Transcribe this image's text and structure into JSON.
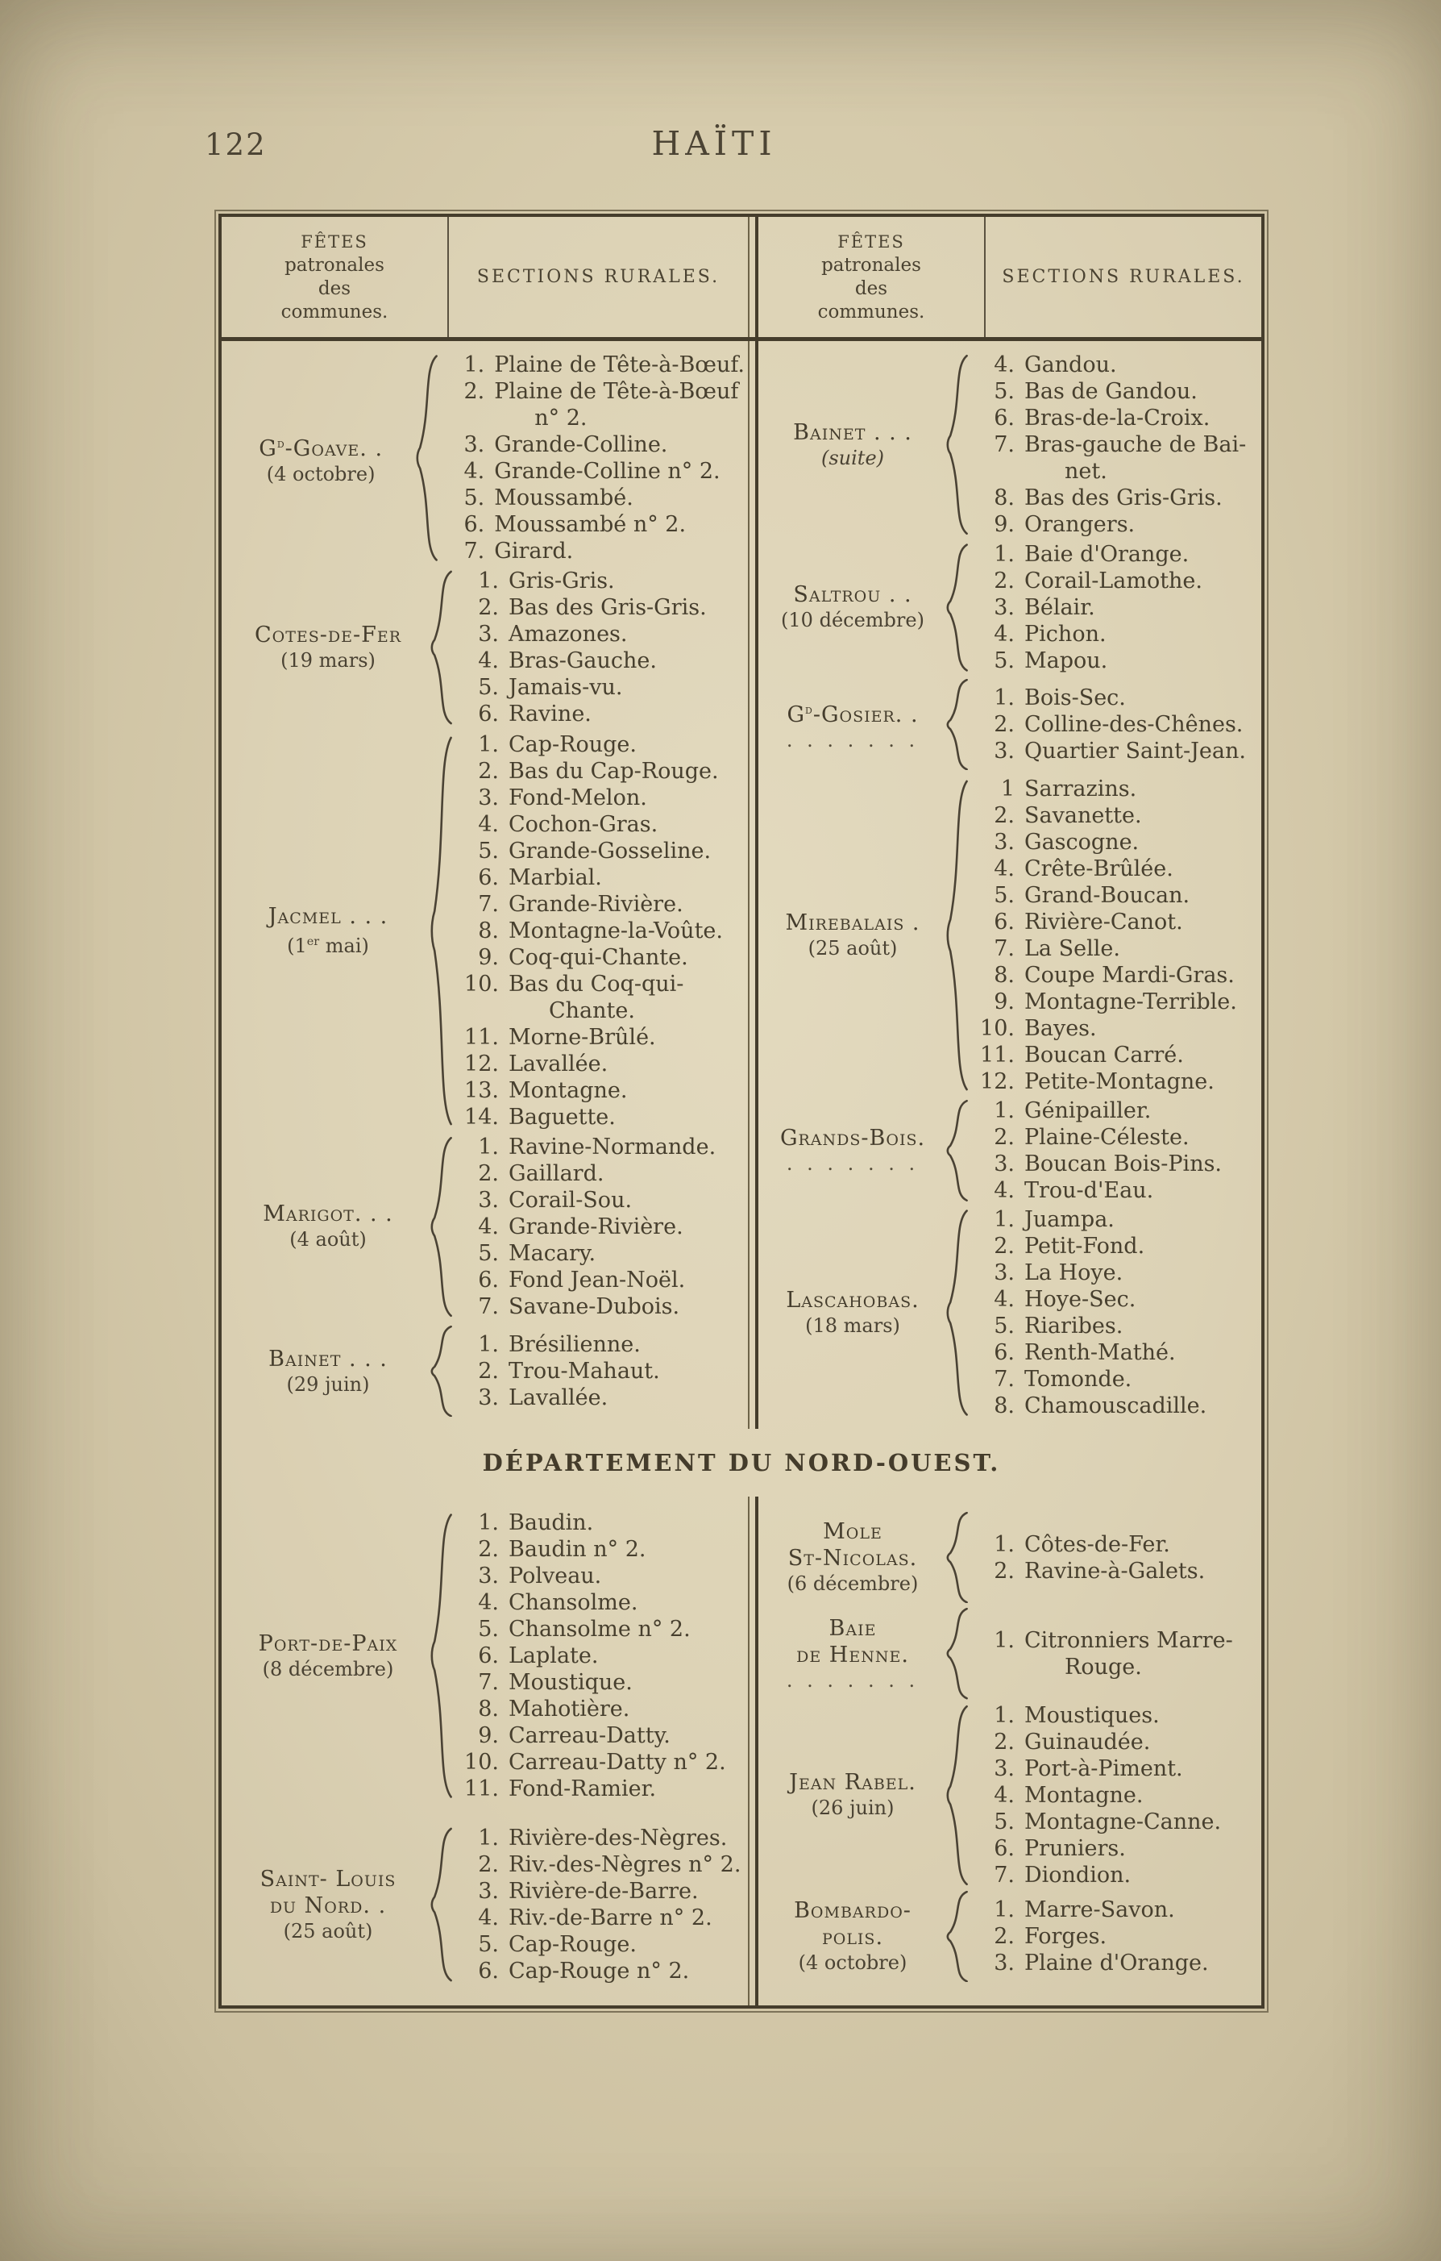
{
  "page": {
    "folio": "122",
    "running_title": "HAÏTI"
  },
  "headers": {
    "fetes_lines": [
      "FÊTES",
      "patronales",
      "des",
      "communes."
    ],
    "sections": "SECTIONS RURALES."
  },
  "divider_title": "DÉPARTEMENT DU NORD-OUEST.",
  "top_left_groups": [
    {
      "name": [
        {
          "segs": [
            {
              "t": "G"
            },
            {
              "t": "d",
              "sup": true
            },
            {
              "t": "-Goave. ."
            }
          ]
        },
        {
          "segs": [
            {
              "t": "(4 octobre)"
            }
          ]
        }
      ],
      "items": [
        {
          "n": "1.",
          "t": "Plaine de Tête-à-Bœuf."
        },
        {
          "n": "2.",
          "t": "Plaine de Tête-à-Bœuf",
          "t2": "n° 2."
        },
        {
          "n": "3.",
          "t": "Grande-Colline."
        },
        {
          "n": "4.",
          "t": "Grande-Colline n° 2."
        },
        {
          "n": "5.",
          "t": "Moussambé."
        },
        {
          "n": "6.",
          "t": "Moussambé n° 2."
        },
        {
          "n": "7.",
          "t": "Girard."
        }
      ]
    },
    {
      "name": [
        {
          "segs": [
            {
              "t": "Cotes-de-Fer"
            }
          ]
        },
        {
          "segs": [
            {
              "t": "(19 mars)"
            }
          ]
        }
      ],
      "items": [
        {
          "n": "1.",
          "t": "Gris-Gris."
        },
        {
          "n": "2.",
          "t": "Bas des Gris-Gris."
        },
        {
          "n": "3.",
          "t": "Amazones."
        },
        {
          "n": "4.",
          "t": "Bras-Gauche."
        },
        {
          "n": "5.",
          "t": "Jamais-vu."
        },
        {
          "n": "6.",
          "t": "Ravine."
        }
      ]
    },
    {
      "name": [
        {
          "segs": [
            {
              "t": "Jacmel . . ."
            }
          ]
        },
        {
          "segs": [
            {
              "t": "(1"
            },
            {
              "t": "er",
              "sup": true
            },
            {
              "t": " mai)"
            }
          ]
        }
      ],
      "items": [
        {
          "n": "1.",
          "t": "Cap-Rouge."
        },
        {
          "n": "2.",
          "t": "Bas du Cap-Rouge."
        },
        {
          "n": "3.",
          "t": "Fond-Melon."
        },
        {
          "n": "4.",
          "t": "Cochon-Gras."
        },
        {
          "n": "5.",
          "t": "Grande-Gosseline."
        },
        {
          "n": "6.",
          "t": "Marbial."
        },
        {
          "n": "7.",
          "t": "Grande-Rivière."
        },
        {
          "n": "8.",
          "t": "Montagne-la-Voûte."
        },
        {
          "n": "9.",
          "t": "Coq-qui-Chante."
        },
        {
          "n": "10.",
          "t": "Bas du Coq-qui-",
          "t2": "Chante."
        },
        {
          "n": "11.",
          "t": "Morne-Brûlé."
        },
        {
          "n": "12.",
          "t": "Lavallée."
        },
        {
          "n": "13.",
          "t": "Montagne."
        },
        {
          "n": "14.",
          "t": "Baguette."
        }
      ]
    },
    {
      "name": [
        {
          "segs": [
            {
              "t": "Marigot. . ."
            }
          ]
        },
        {
          "segs": [
            {
              "t": "(4 août)"
            }
          ]
        }
      ],
      "items": [
        {
          "n": "1.",
          "t": "Ravine-Normande."
        },
        {
          "n": "2.",
          "t": "Gaillard."
        },
        {
          "n": "3.",
          "t": "Corail-Sou."
        },
        {
          "n": "4.",
          "t": "Grande-Rivière."
        },
        {
          "n": "5.",
          "t": "Macary."
        },
        {
          "n": "6.",
          "t": "Fond Jean-Noël."
        },
        {
          "n": "7.",
          "t": "Savane-Dubois."
        }
      ]
    },
    {
      "name": [
        {
          "segs": [
            {
              "t": "Bainet . . ."
            }
          ]
        },
        {
          "segs": [
            {
              "t": "(29 juin)"
            }
          ]
        }
      ],
      "items": [
        {
          "n": "1.",
          "t": "Brésilienne."
        },
        {
          "n": "2.",
          "t": "Trou-Mahaut."
        },
        {
          "n": "3.",
          "t": "Lavallée."
        }
      ]
    }
  ],
  "top_right_groups": [
    {
      "name": [
        {
          "segs": [
            {
              "t": "Bainet . . ."
            }
          ]
        },
        {
          "segs": [
            {
              "t": "(suite)"
            }
          ],
          "italic": true
        }
      ],
      "items": [
        {
          "n": "4.",
          "t": "Gandou."
        },
        {
          "n": "5.",
          "t": "Bas de Gandou."
        },
        {
          "n": "6.",
          "t": "Bras-de-la-Croix."
        },
        {
          "n": "7.",
          "t": "Bras-gauche de Bai-",
          "t2": "net."
        },
        {
          "n": "8.",
          "t": "Bas des Gris-Gris."
        },
        {
          "n": "9.",
          "t": "Orangers."
        }
      ]
    },
    {
      "name": [
        {
          "segs": [
            {
              "t": "Saltrou . ."
            }
          ]
        },
        {
          "segs": [
            {
              "t": "(10 décembre)"
            }
          ]
        }
      ],
      "items": [
        {
          "n": "1.",
          "t": "Baie d'Orange."
        },
        {
          "n": "2.",
          "t": "Corail-Lamothe."
        },
        {
          "n": "3.",
          "t": "Bélair."
        },
        {
          "n": "4.",
          "t": "Pichon."
        },
        {
          "n": "5.",
          "t": "Mapou."
        }
      ]
    },
    {
      "name": [
        {
          "segs": [
            {
              "t": "G"
            },
            {
              "t": "d",
              "sup": true
            },
            {
              "t": "-Gosier. ."
            }
          ]
        },
        {
          "segs": [
            {
              "t": ". . . . . . ."
            }
          ],
          "dots": true
        }
      ],
      "items": [
        {
          "n": "1.",
          "t": "Bois-Sec."
        },
        {
          "n": "2.",
          "t": "Colline-des-Chênes."
        },
        {
          "n": "3.",
          "t": "Quartier Saint-Jean."
        }
      ]
    },
    {
      "name": [
        {
          "segs": [
            {
              "t": "Mirebalais ."
            }
          ]
        },
        {
          "segs": [
            {
              "t": "(25 août)"
            }
          ]
        }
      ],
      "items": [
        {
          "n": "1",
          "t": "Sarrazins."
        },
        {
          "n": "2.",
          "t": "Savanette."
        },
        {
          "n": "3.",
          "t": "Gascogne."
        },
        {
          "n": "4.",
          "t": "Crête-Brûlée."
        },
        {
          "n": "5.",
          "t": "Grand-Boucan."
        },
        {
          "n": "6.",
          "t": "Rivière-Canot."
        },
        {
          "n": "7.",
          "t": "La Selle."
        },
        {
          "n": "8.",
          "t": "Coupe Mardi-Gras."
        },
        {
          "n": "9.",
          "t": "Montagne-Terrible."
        },
        {
          "n": "10.",
          "t": "Bayes."
        },
        {
          "n": "11.",
          "t": "Boucan Carré."
        },
        {
          "n": "12.",
          "t": "Petite-Montagne."
        }
      ]
    },
    {
      "name": [
        {
          "segs": [
            {
              "t": "Grands-Bois."
            }
          ]
        },
        {
          "segs": [
            {
              "t": ". . . . . . ."
            }
          ],
          "dots": true
        }
      ],
      "items": [
        {
          "n": "1.",
          "t": "Génipailler."
        },
        {
          "n": "2.",
          "t": "Plaine-Céleste."
        },
        {
          "n": "3.",
          "t": "Boucan Bois-Pins."
        },
        {
          "n": "4.",
          "t": "Trou-d'Eau."
        }
      ]
    },
    {
      "name": [
        {
          "segs": [
            {
              "t": "Lascahobas."
            }
          ]
        },
        {
          "segs": [
            {
              "t": "(18 mars)"
            }
          ]
        }
      ],
      "items": [
        {
          "n": "1.",
          "t": "Juampa."
        },
        {
          "n": "2.",
          "t": "Petit-Fond."
        },
        {
          "n": "3.",
          "t": "La Hoye."
        },
        {
          "n": "4.",
          "t": "Hoye-Sec."
        },
        {
          "n": "5.",
          "t": "Riaribes."
        },
        {
          "n": "6.",
          "t": "Renth-Mathé."
        },
        {
          "n": "7.",
          "t": "Tomonde."
        },
        {
          "n": "8.",
          "t": "Chamouscadille."
        }
      ]
    }
  ],
  "bottom_left_groups": [
    {
      "name": [
        {
          "segs": [
            {
              "t": "Port-de-Paix"
            }
          ]
        },
        {
          "segs": [
            {
              "t": "(8 décembre)"
            }
          ]
        }
      ],
      "items": [
        {
          "n": "1.",
          "t": "Baudin."
        },
        {
          "n": "2.",
          "t": "Baudin n° 2."
        },
        {
          "n": "3.",
          "t": "Polveau."
        },
        {
          "n": "4.",
          "t": "Chansolme."
        },
        {
          "n": "5.",
          "t": "Chansolme n° 2."
        },
        {
          "n": "6.",
          "t": "Laplate."
        },
        {
          "n": "7.",
          "t": "Moustique."
        },
        {
          "n": "8.",
          "t": "Mahotière."
        },
        {
          "n": "9.",
          "t": "Carreau-Datty."
        },
        {
          "n": "10.",
          "t": "Carreau-Datty n° 2."
        },
        {
          "n": "11.",
          "t": "Fond-Ramier."
        }
      ]
    },
    {
      "name": [
        {
          "segs": [
            {
              "t": "Saint- Louis"
            }
          ]
        },
        {
          "segs": [
            {
              "t": "du Nord. ."
            }
          ]
        },
        {
          "segs": [
            {
              "t": "(25 août)"
            }
          ]
        }
      ],
      "items": [
        {
          "n": "1.",
          "t": "Rivière-des-Nègres."
        },
        {
          "n": "2.",
          "t": "Riv.-des-Nègres n° 2."
        },
        {
          "n": "3.",
          "t": "Rivière-de-Barre."
        },
        {
          "n": "4.",
          "t": "Riv.-de-Barre n° 2."
        },
        {
          "n": "5.",
          "t": "Cap-Rouge."
        },
        {
          "n": "6.",
          "t": "Cap-Rouge n° 2."
        }
      ]
    }
  ],
  "bottom_right_groups": [
    {
      "name": [
        {
          "segs": [
            {
              "t": "Mole"
            }
          ]
        },
        {
          "segs": [
            {
              "t": "St-Nicolas."
            }
          ]
        },
        {
          "segs": [
            {
              "t": "(6 décembre)"
            }
          ]
        }
      ],
      "items": [
        {
          "n": "1.",
          "t": "Côtes-de-Fer."
        },
        {
          "n": "2.",
          "t": "Ravine-à-Galets."
        }
      ]
    },
    {
      "name": [
        {
          "segs": [
            {
              "t": "Baie"
            }
          ]
        },
        {
          "segs": [
            {
              "t": "de Henne."
            }
          ]
        },
        {
          "segs": [
            {
              "t": ". . . . . . ."
            }
          ],
          "dots": true
        }
      ],
      "items": [
        {
          "n": "1.",
          "t": "Citronniers Marre-",
          "t2": "Rouge."
        }
      ]
    },
    {
      "name": [
        {
          "segs": [
            {
              "t": "Jean Rabel."
            }
          ]
        },
        {
          "segs": [
            {
              "t": "(26 juin)"
            }
          ]
        }
      ],
      "items": [
        {
          "n": "1.",
          "t": "Moustiques."
        },
        {
          "n": "2.",
          "t": "Guinaudée."
        },
        {
          "n": "3.",
          "t": "Port-à-Piment."
        },
        {
          "n": "4.",
          "t": "Montagne."
        },
        {
          "n": "5.",
          "t": "Montagne-Canne."
        },
        {
          "n": "6.",
          "t": "Pruniers."
        },
        {
          "n": "7.",
          "t": "Diondion."
        }
      ]
    },
    {
      "name": [
        {
          "segs": [
            {
              "t": "Bombardo-"
            }
          ]
        },
        {
          "segs": [
            {
              "t": "polis."
            }
          ]
        },
        {
          "segs": [
            {
              "t": "(4 octobre)"
            }
          ]
        }
      ],
      "items": [
        {
          "n": "1.",
          "t": "Marre-Savon."
        },
        {
          "n": "2.",
          "t": "Forges."
        },
        {
          "n": "3.",
          "t": "Plaine d'Orange."
        }
      ]
    }
  ]
}
